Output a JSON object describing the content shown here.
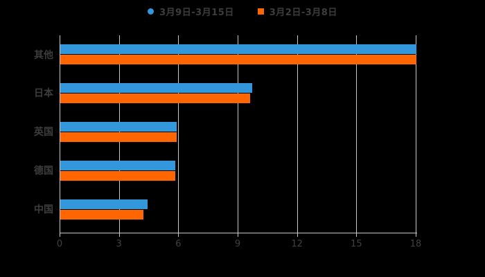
{
  "legend": {
    "items": [
      {
        "label": "3月9日-3月15日",
        "color": "#3398DB",
        "marker": "circle-icon"
      },
      {
        "label": "3月2日-3月8日",
        "color": "#FF6600",
        "marker": "square-icon"
      }
    ]
  },
  "chart_data": {
    "type": "bar",
    "orientation": "horizontal",
    "title": "",
    "xlabel": "",
    "ylabel": "",
    "categories": [
      "其他",
      "日本",
      "英国",
      "德国",
      "中国"
    ],
    "series": [
      {
        "name": "3月9日-3月15日",
        "color": "#3398DB",
        "values": [
          18,
          9.7,
          5.9,
          5.8,
          4.4
        ]
      },
      {
        "name": "3月2日-3月8日",
        "color": "#FF6600",
        "values": [
          18,
          9.6,
          5.9,
          5.8,
          4.2
        ]
      }
    ],
    "xlim": [
      0,
      18
    ],
    "x_ticks": [
      "0",
      "3",
      "6",
      "9",
      "12",
      "15",
      "18"
    ],
    "grid": true,
    "legend_position": "top-center",
    "background_color": "#000000",
    "gridline_color": "#c9c9c9",
    "text_color": "#3d3d3d"
  }
}
